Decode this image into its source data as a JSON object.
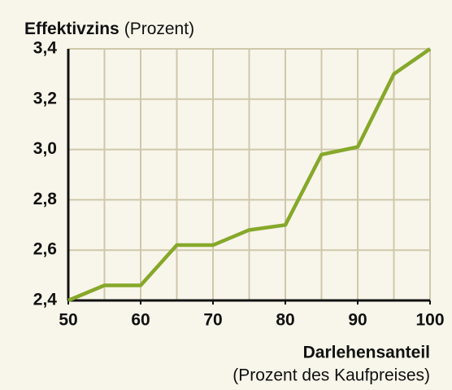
{
  "chart_data": {
    "type": "line",
    "title": "Effektivzins",
    "title_unit": "(Prozent)",
    "x_label": "Darlehensanteil",
    "x_label_unit": "(Prozent des Kaufpreises)",
    "x": [
      50,
      55,
      60,
      65,
      70,
      75,
      80,
      85,
      90,
      95,
      100
    ],
    "series": [
      {
        "color": "#86a82a",
        "values": [
          2.4,
          2.46,
          2.46,
          2.62,
          2.62,
          2.68,
          2.7,
          2.98,
          3.01,
          3.3,
          3.4
        ]
      }
    ],
    "xlim": [
      50,
      100
    ],
    "xticks": [
      50,
      60,
      70,
      80,
      90,
      100
    ],
    "xgrid": [
      55,
      60,
      65,
      70,
      75,
      80,
      85,
      90,
      95,
      100
    ],
    "ylim": [
      2.4,
      3.4
    ],
    "yticks": [
      {
        "value": 2.4,
        "label": "2,4"
      },
      {
        "value": 2.6,
        "label": "2,6"
      },
      {
        "value": 2.8,
        "label": "2,8"
      },
      {
        "value": 3.0,
        "label": "3,0"
      },
      {
        "value": 3.2,
        "label": "3,2"
      },
      {
        "value": 3.4,
        "label": "3,4"
      }
    ],
    "grid": true
  }
}
